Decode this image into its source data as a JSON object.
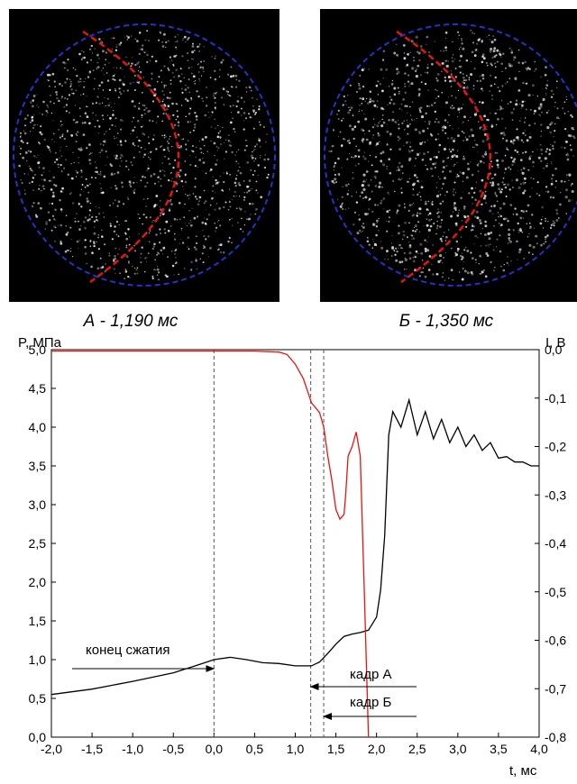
{
  "captions": [
    "А - 1,190 мс",
    "Б - 1,350 мс"
  ],
  "chart_data": {
    "type": "line",
    "ylabel": "P, МПа",
    "y2label": "I, В",
    "xlabel": "t, мс",
    "xlim": [
      -2,
      4
    ],
    "xticks": [
      {
        "value": -2,
        "label": "-2,0"
      },
      {
        "value": -1.5,
        "label": "-1,5"
      },
      {
        "value": -1,
        "label": "-1,0"
      },
      {
        "value": -0.5,
        "label": "-0,5"
      },
      {
        "value": 0,
        "label": "0,0"
      },
      {
        "value": 0.5,
        "label": "0,5"
      },
      {
        "value": 1,
        "label": "1,0"
      },
      {
        "value": 1.5,
        "label": "1,5"
      },
      {
        "value": 2,
        "label": "2,0"
      },
      {
        "value": 2.5,
        "label": "2,5"
      },
      {
        "value": 3,
        "label": "3,0"
      },
      {
        "value": 3.5,
        "label": "3,5"
      },
      {
        "value": 4,
        "label": "4,0"
      }
    ],
    "ylim": [
      0,
      5
    ],
    "yticks": [
      {
        "value": 0,
        "label": "0,0"
      },
      {
        "value": 0.5,
        "label": "0,5"
      },
      {
        "value": 1,
        "label": "1,0"
      },
      {
        "value": 1.5,
        "label": "1,5"
      },
      {
        "value": 2,
        "label": "2,0"
      },
      {
        "value": 2.5,
        "label": "2,5"
      },
      {
        "value": 3,
        "label": "3,0"
      },
      {
        "value": 3.5,
        "label": "3,5"
      },
      {
        "value": 4,
        "label": "4,0"
      },
      {
        "value": 4.5,
        "label": "4,5"
      },
      {
        "value": 5,
        "label": "5,0"
      }
    ],
    "y2lim": [
      -0.8,
      0
    ],
    "y2ticks": [
      {
        "value": 0,
        "label": "0,0"
      },
      {
        "value": -0.1,
        "label": "-0,1"
      },
      {
        "value": -0.2,
        "label": "-0,2"
      },
      {
        "value": -0.3,
        "label": "-0,3"
      },
      {
        "value": -0.4,
        "label": "-0,4"
      },
      {
        "value": -0.5,
        "label": "-0,5"
      },
      {
        "value": -0.6,
        "label": "-0,6"
      },
      {
        "value": -0.7,
        "label": "-0,7"
      },
      {
        "value": -0.8,
        "label": "-0,8"
      }
    ],
    "series": [
      {
        "color": "#000000",
        "x": [
          -2.0,
          -1.5,
          -1.0,
          -0.5,
          -0.2,
          0.0,
          0.2,
          0.4,
          0.6,
          0.8,
          1.0,
          1.2,
          1.3,
          1.4,
          1.5,
          1.6,
          1.7,
          1.8,
          1.9,
          2.0,
          2.05,
          2.1,
          2.15,
          2.2,
          2.3,
          2.4,
          2.5,
          2.6,
          2.7,
          2.8,
          2.9,
          3.0,
          3.1,
          3.2,
          3.3,
          3.4,
          3.5,
          3.6,
          3.7,
          3.8,
          3.9,
          4.0
        ],
        "values": [
          0.55,
          0.62,
          0.72,
          0.83,
          0.93,
          1.0,
          1.03,
          1.0,
          0.96,
          0.95,
          0.92,
          0.92,
          0.97,
          1.08,
          1.2,
          1.3,
          1.33,
          1.35,
          1.38,
          1.55,
          1.9,
          2.6,
          3.9,
          4.2,
          4.0,
          4.35,
          3.9,
          4.2,
          3.85,
          4.1,
          3.8,
          4.0,
          3.75,
          3.9,
          3.7,
          3.8,
          3.6,
          3.62,
          3.55,
          3.55,
          3.5,
          3.5
        ]
      },
      {
        "color": "#e8150f",
        "axis": "y2",
        "x": [
          -2.0,
          0.5,
          0.8,
          0.9,
          1.0,
          1.1,
          1.2,
          1.3,
          1.35,
          1.4,
          1.45,
          1.5,
          1.55,
          1.6,
          1.62,
          1.65,
          1.7,
          1.75,
          1.8,
          1.85,
          1.9
        ],
        "values": [
          -0.003,
          -0.003,
          -0.005,
          -0.01,
          -0.03,
          -0.06,
          -0.11,
          -0.13,
          -0.16,
          -0.22,
          -0.27,
          -0.33,
          -0.35,
          -0.34,
          -0.3,
          -0.22,
          -0.2,
          -0.17,
          -0.22,
          -0.5,
          -0.8
        ]
      }
    ],
    "markers": [
      0,
      1.19,
      1.35
    ],
    "annotations": [
      {
        "text": "конец сжатия",
        "x": 0
      },
      {
        "text": "кадр А",
        "x": 1.19
      },
      {
        "text": "кадр Б",
        "x": 1.35
      }
    ]
  }
}
